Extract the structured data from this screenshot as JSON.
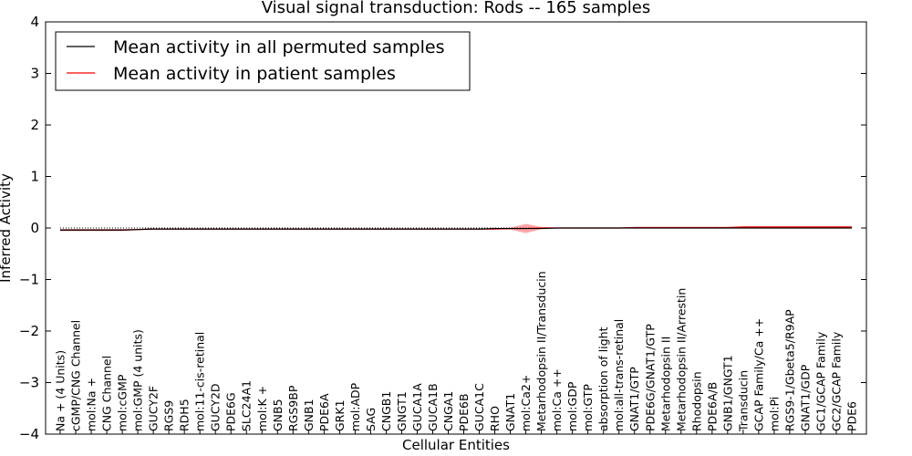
{
  "chart_data": {
    "type": "line",
    "title": "Visual signal transduction: Rods -- 165 samples",
    "xlabel": "Cellular Entities",
    "ylabel": "Inferred Activity",
    "ylim": [
      -4,
      4
    ],
    "yticks": [
      "−4",
      "−3",
      "−2",
      "−1",
      "0",
      "1",
      "2",
      "3",
      "4"
    ],
    "grid": false,
    "legend_position": "top-left",
    "categories": [
      "Na + (4 Units)",
      "cGMP/CNG Channel",
      "mol:Na +",
      "CNG Channel",
      "mol:cGMP",
      "mol:GMP (4 units)",
      "GUCY2F",
      "RGS9",
      "RDH5",
      "mol:11-cis-retinal",
      "GUCY2D",
      "PDE6G",
      "SLC24A1",
      "mol:K +",
      "GNB5",
      "RGS9BP",
      "GNB1",
      "PDE6A",
      "GRK1",
      "mol:ADP",
      "SAG",
      "CNGB1",
      "GNGT1",
      "GUCA1A",
      "GUCA1B",
      "CNGA1",
      "PDE6B",
      "GUCA1C",
      "RHO",
      "GNAT1",
      "mol:Ca2+",
      "Metarhodopsin II/Transducin",
      "mol:Ca ++",
      "mol:GDP",
      "mol:GTP",
      "absorption of light",
      "mol:all-trans-retinal",
      "GNAT1/GTP",
      "PDE6G/GNAT1/GTP",
      "Metarhodopsin II",
      "Metarhodopsin II/Arrestin",
      "Rhodopsin",
      "PDE6A/B",
      "GNB1/GNGT1",
      "Transducin",
      "GCAP Family/Ca ++",
      "mol:Pi",
      "RGS9-1/Gbeta5/R9AP",
      "GNAT1/GDP",
      "GC1/GCAP Family",
      "GC2/GCAP Family",
      "PDE6"
    ],
    "series": [
      {
        "name": "Mean activity in all permuted samples",
        "color": "#000000",
        "values": [
          -0.04,
          -0.04,
          -0.04,
          -0.04,
          -0.04,
          -0.03,
          -0.02,
          -0.02,
          -0.02,
          -0.02,
          -0.02,
          -0.02,
          -0.02,
          -0.02,
          -0.02,
          -0.02,
          -0.02,
          -0.02,
          -0.02,
          -0.02,
          -0.02,
          -0.02,
          -0.02,
          -0.02,
          -0.02,
          -0.02,
          -0.02,
          -0.02,
          -0.01,
          -0.01,
          -0.01,
          -0.01,
          0.0,
          0.0,
          0.0,
          0.0,
          0.0,
          0.0,
          0.0,
          0.0,
          0.0,
          0.0,
          0.0,
          0.0,
          0.0,
          0.0,
          0.0,
          0.0,
          0.0,
          0.0,
          0.0,
          0.0
        ]
      },
      {
        "name": "Mean activity in patient samples",
        "color": "#ff0000",
        "values": [
          -0.04,
          -0.04,
          -0.04,
          -0.04,
          -0.04,
          -0.03,
          -0.02,
          -0.02,
          -0.02,
          -0.02,
          -0.02,
          -0.02,
          -0.02,
          -0.02,
          -0.02,
          -0.02,
          -0.02,
          -0.02,
          -0.02,
          -0.02,
          -0.02,
          -0.02,
          -0.02,
          -0.02,
          -0.02,
          -0.02,
          -0.02,
          -0.02,
          -0.02,
          -0.01,
          -0.01,
          0.0,
          0.0,
          0.0,
          0.0,
          0.0,
          0.0,
          0.01,
          0.01,
          0.01,
          0.01,
          0.01,
          0.01,
          0.01,
          0.02,
          0.02,
          0.02,
          0.02,
          0.02,
          0.02,
          0.02,
          0.02
        ],
        "band_halfwidth": [
          0.02,
          0.02,
          0.02,
          0.02,
          0.02,
          0.01,
          0.01,
          0.01,
          0.01,
          0.01,
          0.01,
          0.01,
          0.01,
          0.01,
          0.01,
          0.01,
          0.01,
          0.01,
          0.01,
          0.01,
          0.01,
          0.01,
          0.01,
          0.01,
          0.01,
          0.01,
          0.01,
          0.01,
          0.01,
          0.02,
          0.09,
          0.02,
          0.01,
          0.01,
          0.01,
          0.01,
          0.01,
          0.01,
          0.01,
          0.01,
          0.01,
          0.01,
          0.01,
          0.01,
          0.01,
          0.01,
          0.01,
          0.01,
          0.01,
          0.01,
          0.01,
          0.01
        ]
      }
    ],
    "reference_line": {
      "y": 0,
      "style": "dotted"
    }
  }
}
